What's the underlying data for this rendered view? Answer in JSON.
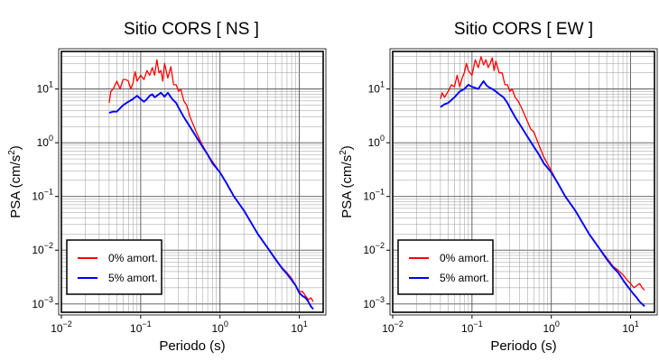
{
  "chart_data": [
    {
      "type": "line",
      "title": "Sitio CORS [ NS ]",
      "xlabel": "Periodo (s)",
      "ylabel": "PSA (cm/s²)",
      "ylabel_parts": {
        "base": "PSA (cm/s",
        "exp": "2",
        "end": ")"
      },
      "xscale": "log",
      "yscale": "log",
      "xlim": [
        0.01,
        20
      ],
      "ylim": [
        0.0007,
        50
      ],
      "xticks": [
        {
          "base": "10",
          "exp": "−2",
          "value": 0.01
        },
        {
          "base": "10",
          "exp": "−1",
          "value": 0.1
        },
        {
          "base": "10",
          "exp": "0",
          "value": 1
        },
        {
          "base": "10",
          "exp": "1",
          "value": 10
        }
      ],
      "yticks": [
        {
          "base": "10",
          "exp": "−3",
          "value": 0.001
        },
        {
          "base": "10",
          "exp": "−2",
          "value": 0.01
        },
        {
          "base": "10",
          "exp": "−1",
          "value": 0.1
        },
        {
          "base": "10",
          "exp": "0",
          "value": 1
        },
        {
          "base": "10",
          "exp": "1",
          "value": 10
        }
      ],
      "grid": true,
      "legend_position": "bottom-left",
      "series": [
        {
          "name": "0% amort.",
          "color": "#ff0000",
          "points": [
            [
              0.04,
              5.5
            ],
            [
              0.042,
              9
            ],
            [
              0.045,
              10
            ],
            [
              0.05,
              14
            ],
            [
              0.055,
              10
            ],
            [
              0.06,
              15
            ],
            [
              0.065,
              15
            ],
            [
              0.07,
              14
            ],
            [
              0.075,
              10
            ],
            [
              0.08,
              13
            ],
            [
              0.085,
              21
            ],
            [
              0.09,
              14
            ],
            [
              0.1,
              18
            ],
            [
              0.11,
              15
            ],
            [
              0.12,
              22
            ],
            [
              0.13,
              18
            ],
            [
              0.14,
              25
            ],
            [
              0.15,
              18
            ],
            [
              0.16,
              35
            ],
            [
              0.17,
              20
            ],
            [
              0.18,
              22
            ],
            [
              0.19,
              14
            ],
            [
              0.2,
              30
            ],
            [
              0.22,
              16
            ],
            [
              0.24,
              26
            ],
            [
              0.26,
              12
            ],
            [
              0.28,
              12
            ],
            [
              0.3,
              9
            ],
            [
              0.32,
              10
            ],
            [
              0.35,
              6
            ],
            [
              0.38,
              5
            ],
            [
              0.42,
              3
            ],
            [
              0.5,
              1.6
            ],
            [
              0.6,
              0.9
            ],
            [
              0.7,
              0.6
            ],
            [
              0.8,
              0.45
            ],
            [
              1.0,
              0.28
            ],
            [
              1.2,
              0.18
            ],
            [
              1.5,
              0.1
            ],
            [
              2,
              0.055
            ],
            [
              3,
              0.02
            ],
            [
              4,
              0.011
            ],
            [
              5,
              0.007
            ],
            [
              6,
              0.0048
            ],
            [
              7,
              0.0038
            ],
            [
              8,
              0.003
            ],
            [
              9,
              0.0022
            ],
            [
              10,
              0.0017
            ],
            [
              11,
              0.0017
            ],
            [
              12,
              0.0014
            ],
            [
              13,
              0.0012
            ],
            [
              14,
              0.0013
            ],
            [
              15,
              0.0011
            ]
          ]
        },
        {
          "name": "5% amort.",
          "color": "#0000ff",
          "points": [
            [
              0.04,
              3.6
            ],
            [
              0.045,
              3.8
            ],
            [
              0.05,
              3.8
            ],
            [
              0.06,
              5
            ],
            [
              0.07,
              5.8
            ],
            [
              0.08,
              6.5
            ],
            [
              0.09,
              7.5
            ],
            [
              0.1,
              6.5
            ],
            [
              0.11,
              5.8
            ],
            [
              0.12,
              6.5
            ],
            [
              0.13,
              7.5
            ],
            [
              0.14,
              8
            ],
            [
              0.15,
              7
            ],
            [
              0.16,
              7.5
            ],
            [
              0.18,
              8.5
            ],
            [
              0.2,
              7.2
            ],
            [
              0.22,
              8.5
            ],
            [
              0.25,
              6.5
            ],
            [
              0.28,
              5.5
            ],
            [
              0.3,
              4.5
            ],
            [
              0.35,
              3
            ],
            [
              0.4,
              2.2
            ],
            [
              0.5,
              1.3
            ],
            [
              0.6,
              0.85
            ],
            [
              0.7,
              0.6
            ],
            [
              0.8,
              0.42
            ],
            [
              1.0,
              0.28
            ],
            [
              1.2,
              0.18
            ],
            [
              1.5,
              0.1
            ],
            [
              2,
              0.055
            ],
            [
              3,
              0.02
            ],
            [
              4,
              0.011
            ],
            [
              5,
              0.0068
            ],
            [
              6,
              0.0047
            ],
            [
              7,
              0.0036
            ],
            [
              8,
              0.0028
            ],
            [
              9,
              0.0022
            ],
            [
              10,
              0.0016
            ],
            [
              11,
              0.0014
            ],
            [
              12,
              0.0013
            ],
            [
              13,
              0.0011
            ],
            [
              14,
              0.0009
            ],
            [
              15,
              0.0008
            ]
          ]
        }
      ]
    },
    {
      "type": "line",
      "title": "Sitio CORS [ EW ]",
      "xlabel": "Periodo (s)",
      "ylabel": "PSA (cm/s²)",
      "ylabel_parts": {
        "base": "PSA (cm/s",
        "exp": "2",
        "end": ")"
      },
      "xscale": "log",
      "yscale": "log",
      "xlim": [
        0.01,
        20
      ],
      "ylim": [
        0.0007,
        50
      ],
      "xticks": [
        {
          "base": "10",
          "exp": "−2",
          "value": 0.01
        },
        {
          "base": "10",
          "exp": "−1",
          "value": 0.1
        },
        {
          "base": "10",
          "exp": "0",
          "value": 1
        },
        {
          "base": "10",
          "exp": "1",
          "value": 10
        }
      ],
      "yticks": [
        {
          "base": "10",
          "exp": "−3",
          "value": 0.001
        },
        {
          "base": "10",
          "exp": "−2",
          "value": 0.01
        },
        {
          "base": "10",
          "exp": "−1",
          "value": 0.1
        },
        {
          "base": "10",
          "exp": "0",
          "value": 1
        },
        {
          "base": "10",
          "exp": "1",
          "value": 10
        }
      ],
      "grid": true,
      "legend_position": "bottom-left",
      "series": [
        {
          "name": "0% amort.",
          "color": "#ff0000",
          "points": [
            [
              0.04,
              6.5
            ],
            [
              0.042,
              8.5
            ],
            [
              0.045,
              7
            ],
            [
              0.05,
              9
            ],
            [
              0.055,
              12
            ],
            [
              0.06,
              11
            ],
            [
              0.065,
              18
            ],
            [
              0.07,
              11
            ],
            [
              0.075,
              16
            ],
            [
              0.08,
              20
            ],
            [
              0.085,
              30
            ],
            [
              0.09,
              22
            ],
            [
              0.1,
              18
            ],
            [
              0.11,
              35
            ],
            [
              0.12,
              25
            ],
            [
              0.13,
              40
            ],
            [
              0.14,
              28
            ],
            [
              0.15,
              35
            ],
            [
              0.16,
              25
            ],
            [
              0.17,
              30
            ],
            [
              0.18,
              38
            ],
            [
              0.19,
              22
            ],
            [
              0.2,
              33
            ],
            [
              0.22,
              20
            ],
            [
              0.24,
              20
            ],
            [
              0.26,
              12
            ],
            [
              0.28,
              12
            ],
            [
              0.3,
              9
            ],
            [
              0.32,
              10
            ],
            [
              0.35,
              7
            ],
            [
              0.38,
              6
            ],
            [
              0.42,
              4.5
            ],
            [
              0.5,
              2.5
            ],
            [
              0.55,
              1.8
            ],
            [
              0.6,
              1.6
            ],
            [
              0.7,
              0.9
            ],
            [
              0.8,
              0.55
            ],
            [
              1.0,
              0.3
            ],
            [
              1.2,
              0.18
            ],
            [
              1.5,
              0.1
            ],
            [
              2,
              0.055
            ],
            [
              3,
              0.02
            ],
            [
              4,
              0.011
            ],
            [
              5,
              0.0072
            ],
            [
              6,
              0.005
            ],
            [
              7,
              0.0042
            ],
            [
              8,
              0.0035
            ],
            [
              9,
              0.0028
            ],
            [
              10,
              0.0024
            ],
            [
              11,
              0.002
            ],
            [
              12,
              0.0022
            ],
            [
              13,
              0.0024
            ],
            [
              14,
              0.002
            ],
            [
              15,
              0.0018
            ]
          ]
        },
        {
          "name": "5% amort.",
          "color": "#0000ff",
          "points": [
            [
              0.04,
              4.6
            ],
            [
              0.045,
              5.2
            ],
            [
              0.05,
              5.5
            ],
            [
              0.06,
              7
            ],
            [
              0.07,
              9
            ],
            [
              0.08,
              10
            ],
            [
              0.09,
              12
            ],
            [
              0.1,
              11
            ],
            [
              0.11,
              10.5
            ],
            [
              0.12,
              10
            ],
            [
              0.13,
              12
            ],
            [
              0.14,
              14
            ],
            [
              0.15,
              12
            ],
            [
              0.16,
              11
            ],
            [
              0.18,
              10
            ],
            [
              0.2,
              9
            ],
            [
              0.22,
              8
            ],
            [
              0.25,
              7
            ],
            [
              0.28,
              5.5
            ],
            [
              0.3,
              4.5
            ],
            [
              0.35,
              3
            ],
            [
              0.4,
              2.2
            ],
            [
              0.5,
              1.3
            ],
            [
              0.6,
              0.85
            ],
            [
              0.7,
              0.6
            ],
            [
              0.8,
              0.42
            ],
            [
              1.0,
              0.28
            ],
            [
              1.2,
              0.18
            ],
            [
              1.5,
              0.1
            ],
            [
              2,
              0.055
            ],
            [
              3,
              0.02
            ],
            [
              4,
              0.011
            ],
            [
              5,
              0.0068
            ],
            [
              6,
              0.0048
            ],
            [
              7,
              0.0038
            ],
            [
              8,
              0.0028
            ],
            [
              9,
              0.0022
            ],
            [
              10,
              0.0018
            ],
            [
              11,
              0.0015
            ],
            [
              12,
              0.0013
            ],
            [
              13,
              0.0011
            ],
            [
              14,
              0.001
            ],
            [
              15,
              0.0009
            ]
          ]
        }
      ]
    }
  ]
}
